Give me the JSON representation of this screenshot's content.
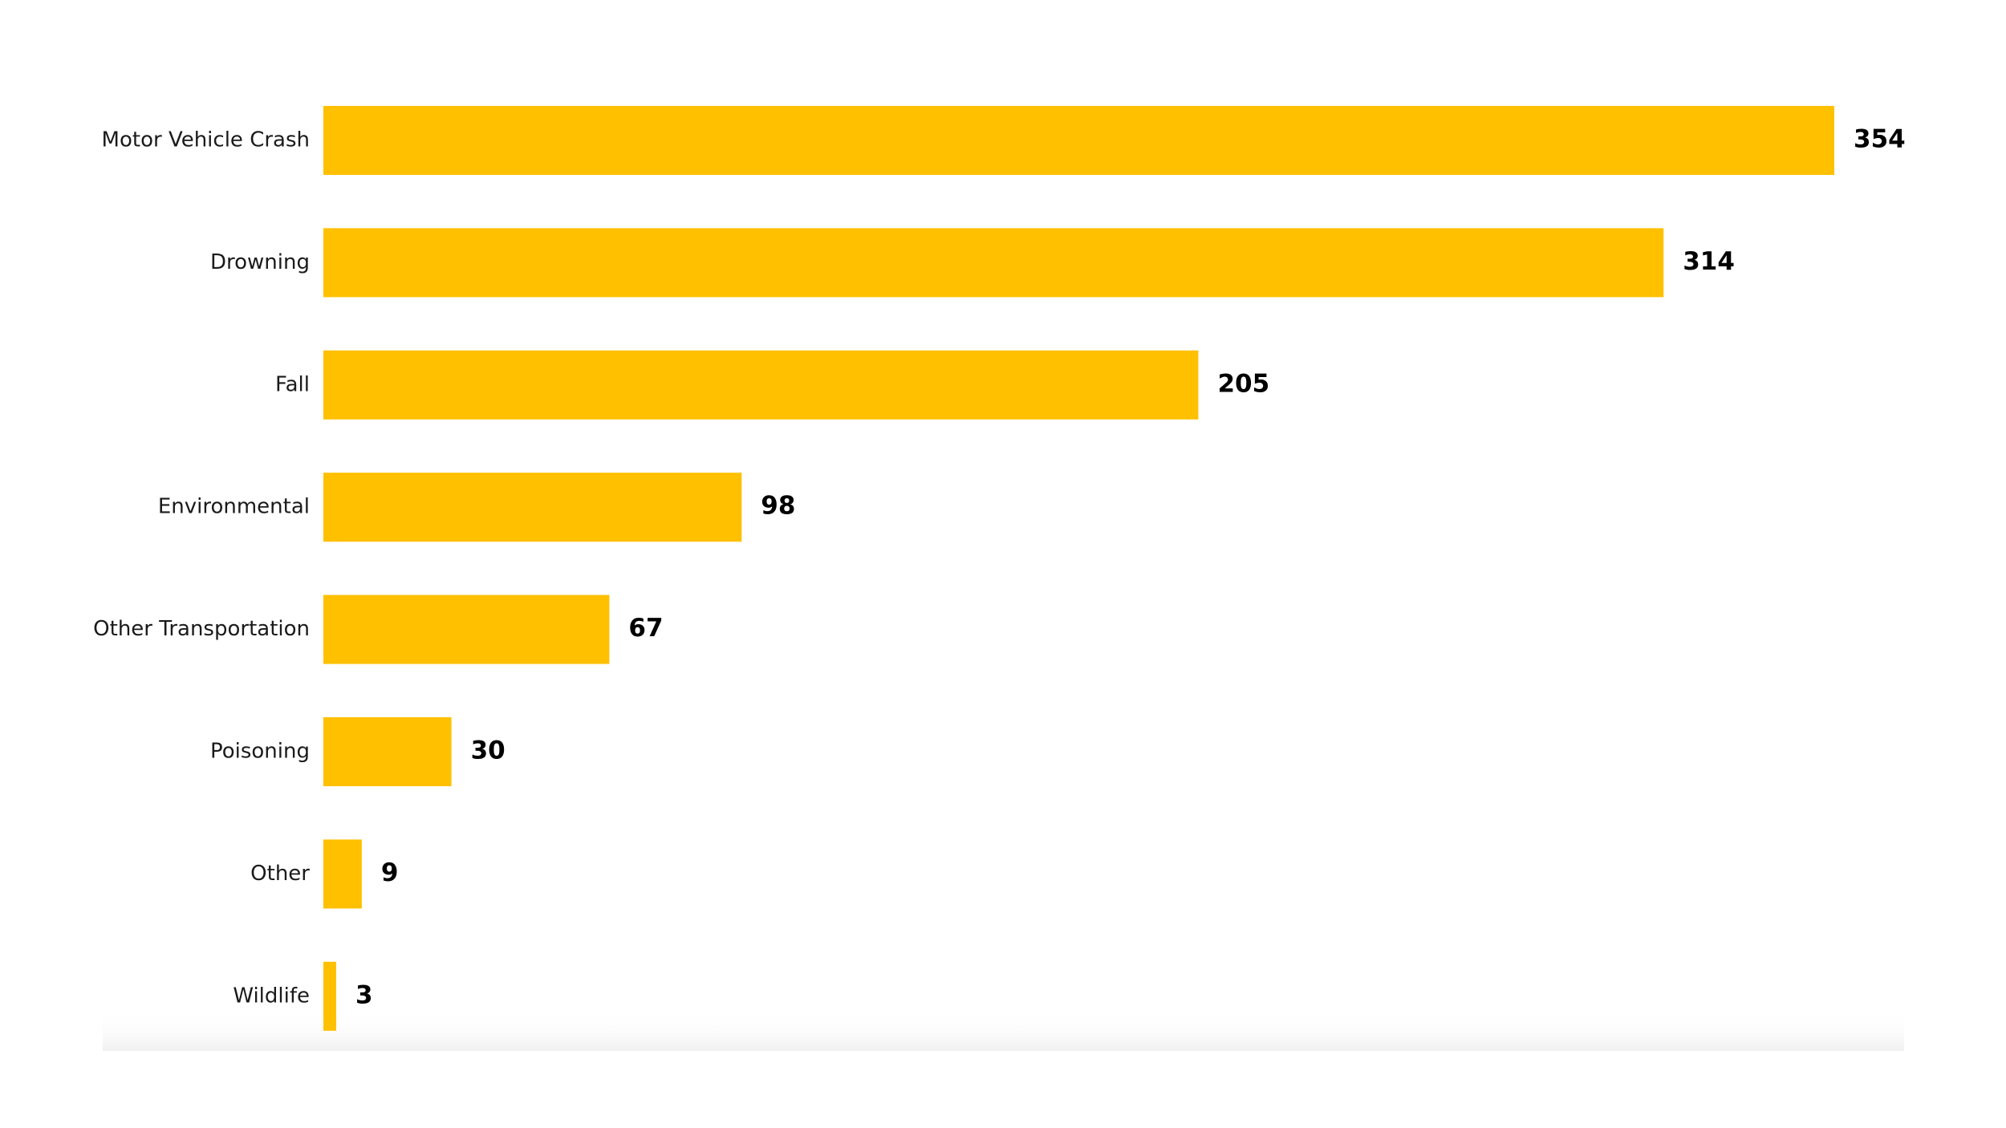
{
  "chart_data": {
    "type": "bar",
    "orientation": "horizontal",
    "categories": [
      "Motor Vehicle Crash",
      "Drowning",
      "Fall",
      "Environmental",
      "Other Transportation",
      "Poisoning",
      "Other",
      "Wildlife"
    ],
    "values": [
      354,
      314,
      205,
      98,
      67,
      30,
      9,
      3
    ],
    "color": "#FFC000"
  }
}
